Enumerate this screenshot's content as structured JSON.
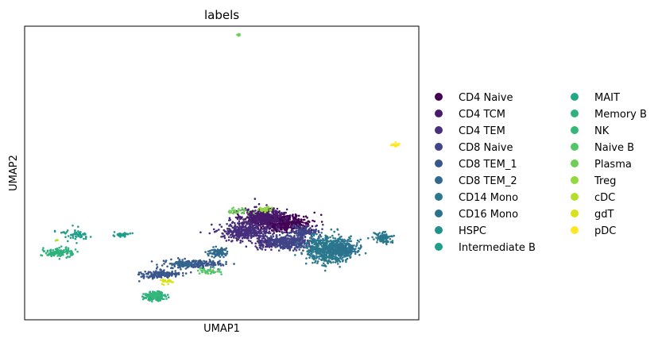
{
  "chart_data": {
    "type": "scatter",
    "title": "labels",
    "xlabel": "UMAP1",
    "ylabel": "UMAP2",
    "xlim": [
      0,
      100
    ],
    "ylim": [
      0,
      100
    ],
    "grid": false,
    "ticks": false,
    "legend_placement": "right, outside plot, two columns",
    "series": [
      {
        "name": "CD4 Naive",
        "color": "#440154",
        "clusters": [
          {
            "cx": 65.5,
            "cy": 67,
            "rx": 6.5,
            "ry": 2.5,
            "n": 520
          }
        ]
      },
      {
        "name": "CD4 TCM",
        "color": "#481a6c",
        "clusters": [
          {
            "cx": 60,
            "cy": 65,
            "rx": 5,
            "ry": 2.8,
            "n": 420
          }
        ]
      },
      {
        "name": "CD4 TEM",
        "color": "#472f7d",
        "clusters": [
          {
            "cx": 56,
            "cy": 70,
            "rx": 5.5,
            "ry": 2.5,
            "n": 380
          },
          {
            "cx": 62,
            "cy": 74,
            "rx": 3.5,
            "ry": 1.5,
            "n": 120
          }
        ]
      },
      {
        "name": "CD8 Naive",
        "color": "#414487",
        "clusters": [
          {
            "cx": 67,
            "cy": 73.5,
            "rx": 5,
            "ry": 2.5,
            "n": 320
          },
          {
            "cx": 71,
            "cy": 70,
            "rx": 3,
            "ry": 2,
            "n": 120
          }
        ]
      },
      {
        "name": "CD8 TEM_1",
        "color": "#39568c",
        "clusters": [
          {
            "cx": 43,
            "cy": 81,
            "rx": 7,
            "ry": 1.2,
            "n": 180
          },
          {
            "cx": 34,
            "cy": 84.5,
            "rx": 4.5,
            "ry": 1.2,
            "n": 160
          }
        ]
      },
      {
        "name": "CD8 TEM_2",
        "color": "#31688e",
        "clusters": [
          {
            "cx": 49,
            "cy": 77,
            "rx": 2.5,
            "ry": 1.5,
            "n": 90
          },
          {
            "cx": 40,
            "cy": 81,
            "rx": 2.5,
            "ry": 1.2,
            "n": 50
          }
        ]
      },
      {
        "name": "CD14 Mono",
        "color": "#2a788e",
        "clusters": [
          {
            "cx": 77.5,
            "cy": 76,
            "rx": 5.5,
            "ry": 4,
            "n": 700
          },
          {
            "cx": 91,
            "cy": 72,
            "rx": 1.8,
            "ry": 1.5,
            "n": 110
          }
        ]
      },
      {
        "name": "CD16 Mono",
        "color": "#2c728e",
        "clusters": [
          {
            "cx": 81,
            "cy": 76,
            "rx": 3,
            "ry": 2,
            "n": 120
          }
        ]
      },
      {
        "name": "HSPC",
        "color": "#21918c",
        "clusters": [
          {
            "cx": 25,
            "cy": 71,
            "rx": 0.5,
            "ry": 0.4,
            "n": 6
          }
        ]
      },
      {
        "name": "Intermediate B",
        "color": "#1f9e89",
        "clusters": [
          {
            "cx": 25,
            "cy": 71,
            "rx": 1.8,
            "ry": 0.6,
            "n": 40
          },
          {
            "cx": 13,
            "cy": 71,
            "rx": 3.5,
            "ry": 2,
            "n": 60
          }
        ]
      },
      {
        "name": "MAIT",
        "color": "#22a884",
        "clusters": [
          {
            "cx": 0,
            "cy": 0,
            "rx": 0.1,
            "ry": 0.1,
            "n": 0
          }
        ]
      },
      {
        "name": "Memory B",
        "color": "#2db27d",
        "clusters": [
          {
            "cx": 8.5,
            "cy": 77,
            "rx": 3.5,
            "ry": 1.5,
            "n": 110
          },
          {
            "cx": 33,
            "cy": 92,
            "rx": 2.5,
            "ry": 1.3,
            "n": 160
          }
        ]
      },
      {
        "name": "NK",
        "color": "#35b779",
        "clusters": [
          {
            "cx": 33,
            "cy": 91.5,
            "rx": 1.5,
            "ry": 0.8,
            "n": 50
          }
        ]
      },
      {
        "name": "Naive B",
        "color": "#54c568",
        "clusters": [
          {
            "cx": 47,
            "cy": 83.5,
            "rx": 3,
            "ry": 1,
            "n": 40
          }
        ]
      },
      {
        "name": "Plasma",
        "color": "#6ece58",
        "clusters": [
          {
            "cx": 54,
            "cy": 63,
            "rx": 3,
            "ry": 0.8,
            "n": 30
          },
          {
            "cx": 54.5,
            "cy": 3,
            "rx": 0.6,
            "ry": 0.4,
            "n": 6
          }
        ]
      },
      {
        "name": "Treg",
        "color": "#95d840",
        "clusters": [
          {
            "cx": 61,
            "cy": 62.5,
            "rx": 1.5,
            "ry": 0.8,
            "n": 40
          }
        ]
      },
      {
        "name": "cDC",
        "color": "#b4de2c",
        "clusters": [
          {
            "cx": 8,
            "cy": 73,
            "rx": 0.3,
            "ry": 0.3,
            "n": 4
          }
        ]
      },
      {
        "name": "gdT",
        "color": "#d8e219",
        "clusters": [
          {
            "cx": 36,
            "cy": 87,
            "rx": 1.5,
            "ry": 0.8,
            "n": 20
          }
        ]
      },
      {
        "name": "pDC",
        "color": "#fde725",
        "clusters": [
          {
            "cx": 94,
            "cy": 40.5,
            "rx": 1,
            "ry": 0.6,
            "n": 30
          }
        ]
      }
    ]
  }
}
